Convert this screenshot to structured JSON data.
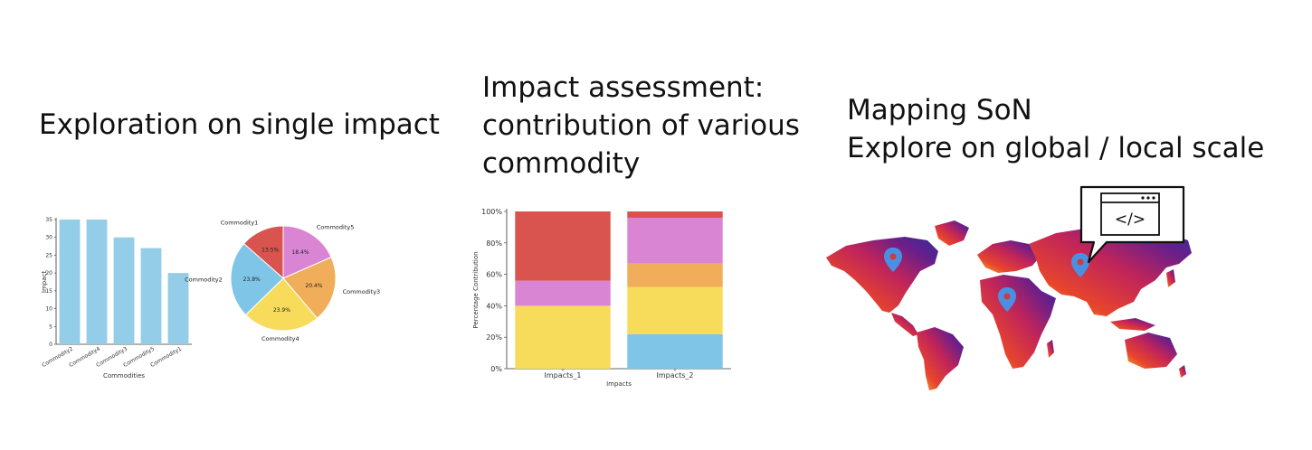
{
  "headings": {
    "single_impact": "Exploration on single impact",
    "assessment": [
      "Impact assessment:",
      "contribution of various",
      "commodity"
    ],
    "mapping": [
      "Mapping SoN",
      "Explore on global / local scale"
    ]
  },
  "colors": {
    "bar": "#93cde8",
    "red": "#d9534f",
    "pink": "#da85d3",
    "orange": "#f0ae5a",
    "yellow": "#f7dc5c",
    "blue": "#7fc5e8",
    "pin": "#4a90e2"
  },
  "chart_data": [
    {
      "type": "bar",
      "categories": [
        "Commodity2",
        "Commodity4",
        "Commodity3",
        "Commodity5",
        "Commodity1"
      ],
      "values": [
        35,
        35,
        30,
        27,
        20
      ],
      "title": "",
      "xlabel": "Commodities",
      "ylabel": "Impact",
      "ylim": [
        0,
        35
      ],
      "yticks": [
        "0",
        "5",
        "10",
        "15",
        "20",
        "25",
        "30",
        "35"
      ],
      "grid": false
    },
    {
      "type": "pie",
      "labels": [
        "Commodity1",
        "Commodity5",
        "Commodity3",
        "Commodity4",
        "Commodity2"
      ],
      "values": [
        13.5,
        18.4,
        20.4,
        23.9,
        23.8
      ],
      "pct_labels": [
        "13.5%",
        "18.4%",
        "20.4%",
        "23.9%",
        "23.8%"
      ],
      "colors": [
        "#d9534f",
        "#da85d3",
        "#f0ae5a",
        "#f7dc5c",
        "#7fc5e8"
      ]
    },
    {
      "type": "bar",
      "stacked": true,
      "categories": [
        "Impacts_1",
        "Impacts_2"
      ],
      "series": [
        {
          "values": [
            0,
            22
          ],
          "color": "#7fc5e8"
        },
        {
          "values": [
            40,
            30
          ],
          "color": "#f7dc5c"
        },
        {
          "values": [
            0,
            15
          ],
          "color": "#f0ae5a"
        },
        {
          "values": [
            16,
            29
          ],
          "color": "#da85d3"
        },
        {
          "values": [
            44,
            4
          ],
          "color": "#d9534f"
        }
      ],
      "xlabel": "Impacts",
      "ylabel": "Percentage Contribution",
      "ylim": [
        0,
        100
      ],
      "yticks": [
        "0%",
        "20%",
        "40%",
        "60%",
        "80%",
        "100%"
      ],
      "grid": false
    }
  ],
  "map": {
    "icon": "code-window-icon",
    "code_glyph": "</>",
    "pins": [
      "pin-north-america",
      "pin-africa",
      "pin-asia"
    ]
  }
}
